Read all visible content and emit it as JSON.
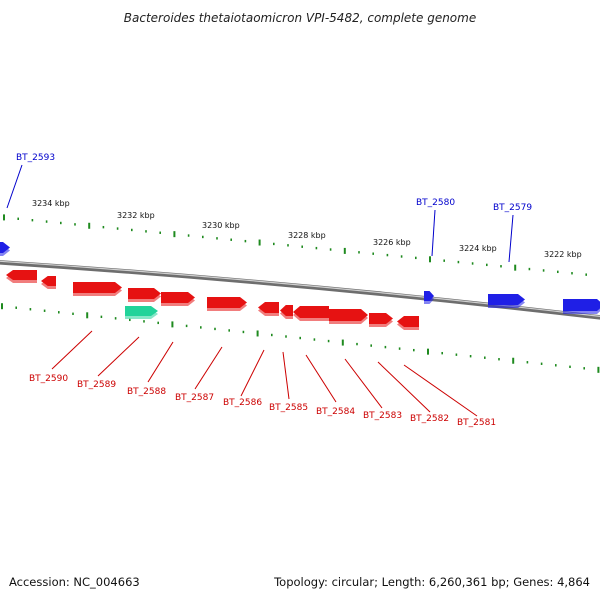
{
  "title": "Bacteroides thetaiotaomicron VPI-5482, complete genome",
  "footer": {
    "accession": "Accession: NC_004663",
    "summary": "Topology: circular; Length: 6,260,361 bp; Genes: 4,864"
  },
  "colors": {
    "forward_gene": "#1f1fe6",
    "reverse_gene": "#e61212",
    "highlight_gene": "#22d39a",
    "tick": "#1f8a1f",
    "backbone": "#808080",
    "label_forward": "#0000cc",
    "label_reverse": "#cc0000"
  },
  "scale_labels": [
    "3234 kbp",
    "3232 kbp",
    "3230 kbp",
    "3228 kbp",
    "3226 kbp",
    "3224 kbp",
    "3222 kbp"
  ],
  "forward_labels": [
    "BT_2593",
    "BT_2580",
    "BT_2579"
  ],
  "reverse_labels": [
    "BT_2590",
    "BT_2589",
    "BT_2588",
    "BT_2587",
    "BT_2586",
    "BT_2585",
    "BT_2584",
    "BT_2583",
    "BT_2582",
    "BT_2581"
  ]
}
